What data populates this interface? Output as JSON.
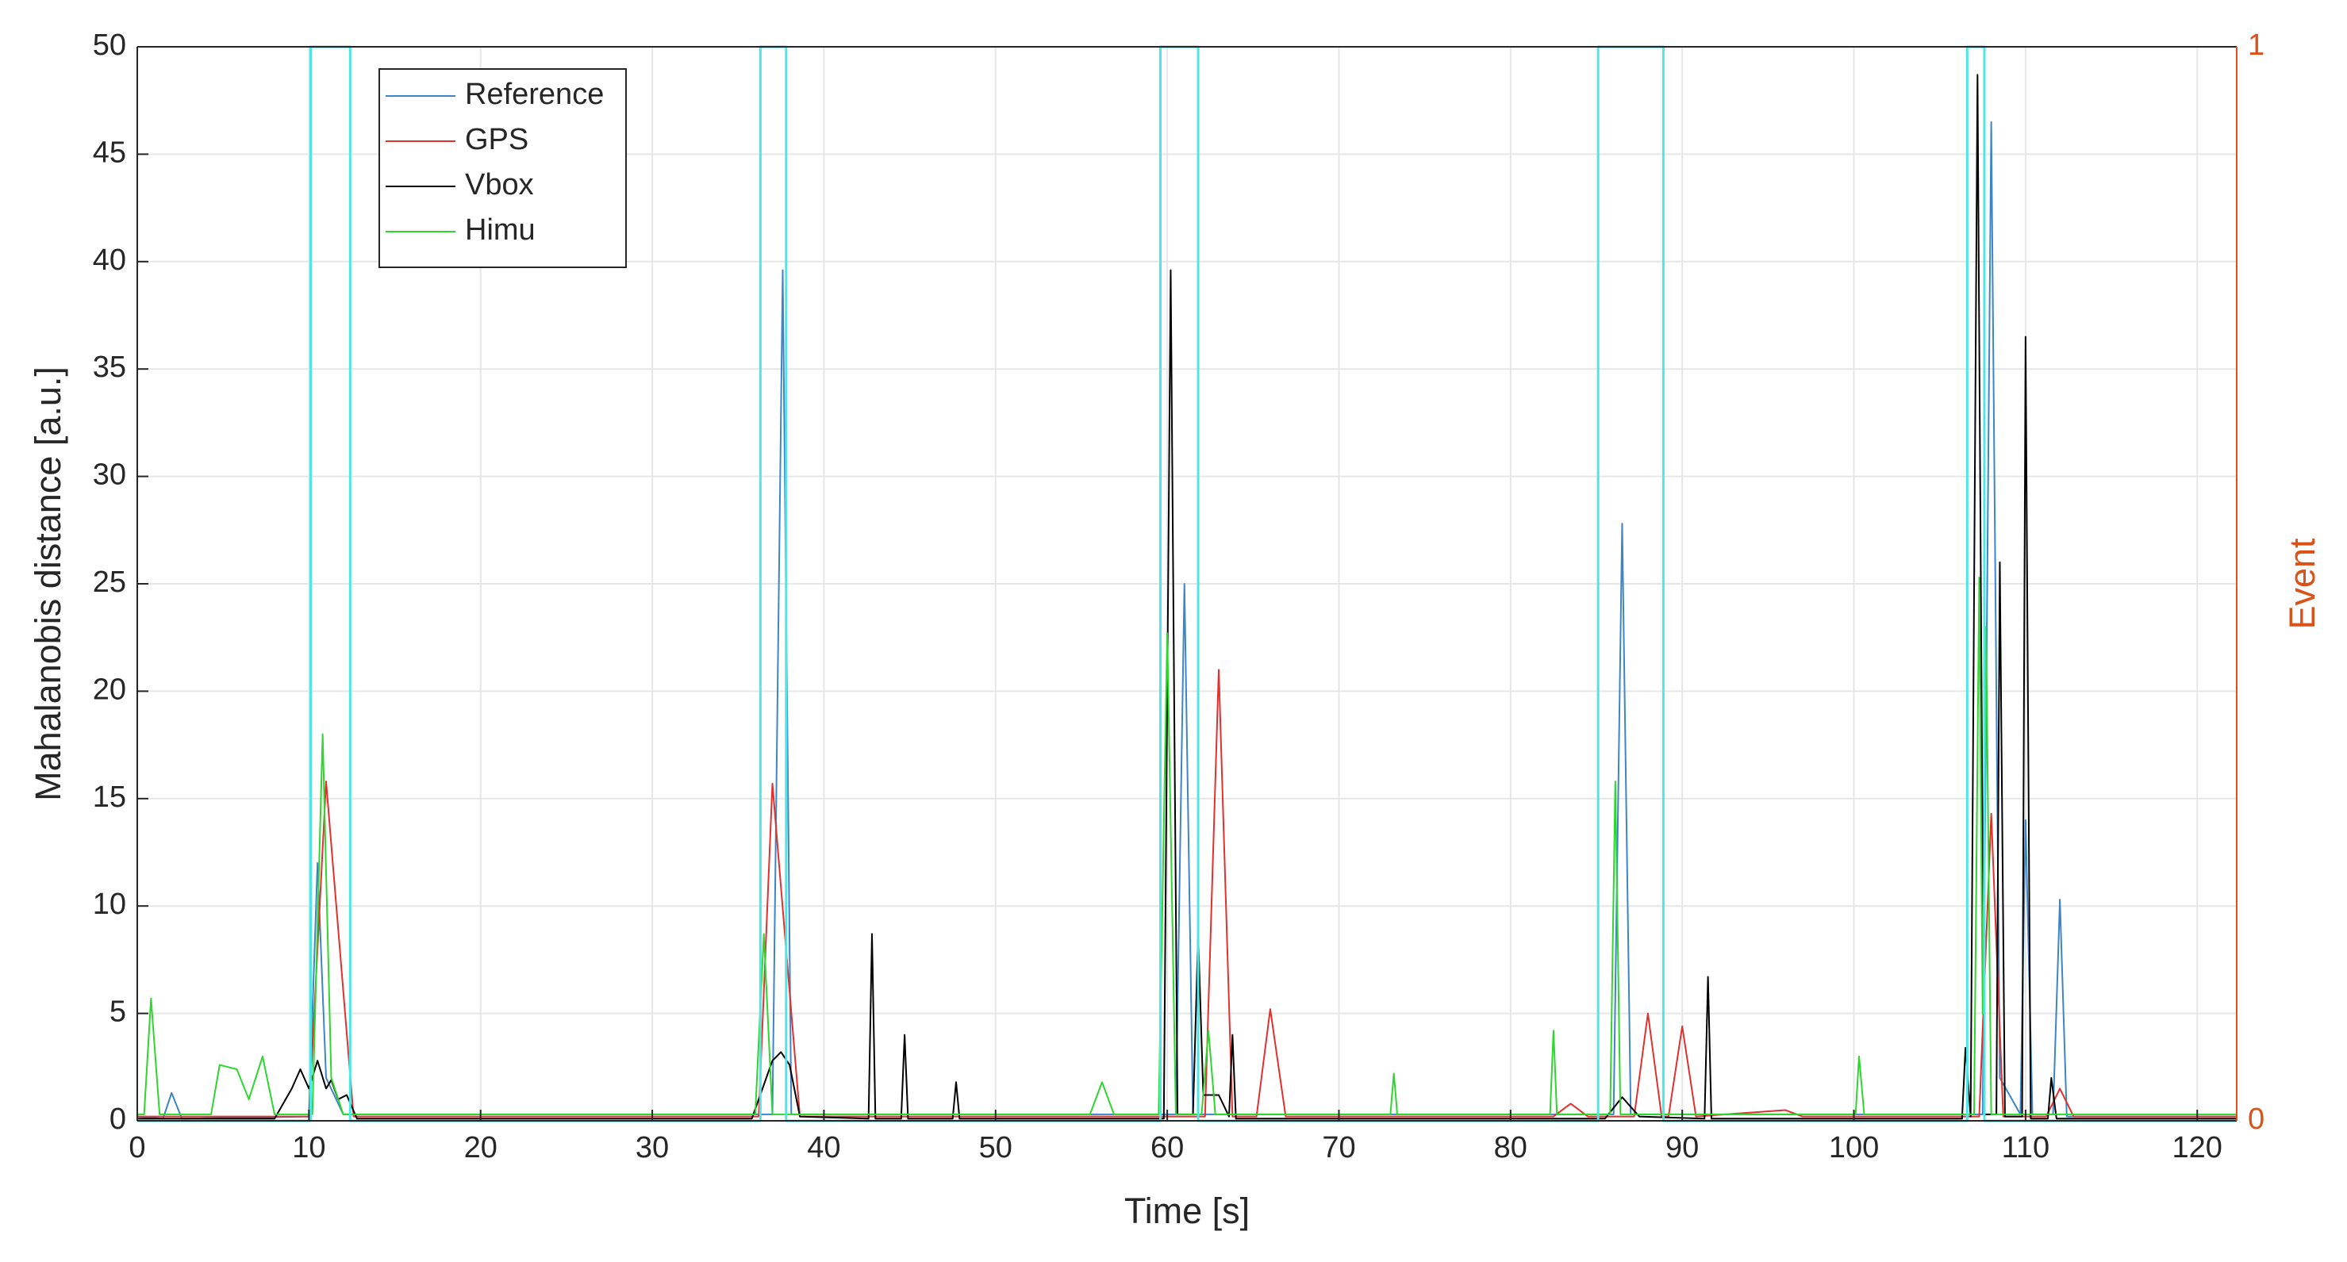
{
  "chart_data": {
    "type": "line",
    "x_label": "Time [s]",
    "y_label": "Mahalanobis distance [a.u.]",
    "y2_label": "Event",
    "y2_color": "#d95319",
    "xlim": [
      0,
      122.3
    ],
    "xticks": [
      0,
      10,
      20,
      30,
      40,
      50,
      60,
      70,
      80,
      90,
      100,
      110,
      120
    ],
    "ylim": [
      0,
      50
    ],
    "yticks": [
      0,
      5,
      10,
      15,
      20,
      25,
      30,
      35,
      40,
      45,
      50
    ],
    "y2lim": [
      0,
      1
    ],
    "y2ticks": [
      0,
      1
    ],
    "grid": true,
    "legend": "upper left",
    "series": [
      {
        "name": "Reference",
        "color": "#3d85c6",
        "x": [
          0,
          1.5,
          2,
          2.6,
          10,
          10.5,
          11,
          12,
          37,
          37.6,
          38.1,
          60.5,
          61,
          61.5,
          86,
          86.5,
          87,
          107.5,
          108,
          108.5,
          109.7,
          110,
          110.4,
          111.6,
          112,
          112.4,
          122.3
        ],
        "values": [
          0.2,
          0.1,
          1.3,
          0.1,
          0.2,
          12,
          2,
          0.3,
          0.3,
          39.6,
          0.3,
          0.3,
          25,
          0.3,
          0.3,
          27.8,
          0.3,
          0.3,
          46.5,
          2,
          0.3,
          14,
          0.3,
          0.3,
          10.3,
          0.2,
          0.2
        ]
      },
      {
        "name": "GPS",
        "color": "#e0312f",
        "x": [
          0,
          10,
          11,
          12.6,
          36.2,
          37,
          38.6,
          62.2,
          63,
          63.8,
          65.2,
          66,
          66.9,
          82.5,
          83.5,
          84.5,
          87.2,
          88,
          88.8,
          89.2,
          90,
          90.8,
          96,
          97,
          107.3,
          108,
          108.7,
          111.2,
          112,
          112.8,
          122.3
        ],
        "values": [
          0.2,
          0.2,
          15.8,
          0.2,
          0.2,
          15.7,
          0.2,
          0.2,
          21,
          0.2,
          0.2,
          5.2,
          0.2,
          0.2,
          0.8,
          0.2,
          0.2,
          5,
          0.2,
          0.2,
          4.4,
          0.2,
          0.5,
          0.2,
          0.2,
          14.3,
          0.2,
          0.2,
          1.5,
          0.2,
          0.2
        ]
      },
      {
        "name": "Vbox",
        "color": "#000000",
        "x": [
          0,
          8,
          9,
          9.5,
          10,
          10.5,
          11,
          11.3,
          11.7,
          12.2,
          12.8,
          35.8,
          37,
          37.5,
          38,
          38.6,
          42.6,
          42.8,
          43,
          44.5,
          44.7,
          44.9,
          47.5,
          47.7,
          47.9,
          59.8,
          60.2,
          60.6,
          61.5,
          61.8,
          62.1,
          63,
          63.6,
          63.8,
          64,
          85.5,
          86.5,
          87.5,
          91.3,
          91.5,
          91.7,
          106.3,
          106.5,
          106.8,
          107.2,
          107.6,
          108.3,
          108.5,
          108.8,
          109.8,
          110,
          110.3,
          111.3,
          111.5,
          111.8,
          122.3
        ],
        "values": [
          0.1,
          0.1,
          1.5,
          2.4,
          1.5,
          2.8,
          1.5,
          1.9,
          1,
          1.2,
          0.1,
          0.1,
          2.8,
          3.2,
          2.6,
          0.2,
          0.1,
          8.7,
          0.1,
          0.1,
          4,
          0.1,
          0.1,
          1.8,
          0.1,
          0.1,
          39.6,
          0.3,
          0.3,
          8.7,
          1.2,
          1.2,
          0.2,
          4,
          0.1,
          0.1,
          1.1,
          0.2,
          0.1,
          6.7,
          0.1,
          0.1,
          3.4,
          0.2,
          48.7,
          0.3,
          0.3,
          26,
          0.2,
          0.2,
          36.5,
          0.1,
          0.1,
          2,
          0.1,
          0.1
        ]
      },
      {
        "name": "Himu",
        "color": "#2fd62f",
        "x": [
          0,
          0.4,
          0.8,
          1.3,
          4.3,
          4.8,
          5.8,
          6.5,
          7.3,
          8,
          10.2,
          10.8,
          11.3,
          12,
          36,
          36.5,
          37,
          55.5,
          56.2,
          56.9,
          59.5,
          60,
          60.5,
          62,
          62.4,
          62.8,
          73,
          73.2,
          73.4,
          82.3,
          82.5,
          82.7,
          85.8,
          86.1,
          86.4,
          100.1,
          100.3,
          100.6,
          107,
          107.3,
          107.5,
          107.7,
          108,
          122.3
        ],
        "values": [
          0.3,
          0.3,
          5.7,
          0.3,
          0.3,
          2.6,
          2.4,
          1,
          3,
          0.3,
          0.3,
          18,
          2,
          0.3,
          0.3,
          8.7,
          0.3,
          0.3,
          1.8,
          0.3,
          0.3,
          22.7,
          0.3,
          0.3,
          4.2,
          0.3,
          0.3,
          2.2,
          0.3,
          0.3,
          4.2,
          0.3,
          0.3,
          15.8,
          0.3,
          0.3,
          3,
          0.3,
          0.3,
          25.3,
          5,
          23,
          0.3,
          0.3
        ]
      },
      {
        "color": "#4ee6e6",
        "axis": "y2",
        "x": [
          0,
          10.1,
          10.1,
          12.4,
          12.4,
          36.3,
          36.3,
          37.8,
          37.8,
          59.6,
          59.6,
          61.8,
          61.8,
          85.1,
          85.1,
          88.9,
          88.9,
          106.6,
          106.6,
          107.6,
          107.6,
          122.3
        ],
        "values": [
          0,
          0,
          1,
          1,
          0,
          0,
          1,
          1,
          0,
          0,
          1,
          1,
          0,
          0,
          1,
          1,
          0,
          0,
          1,
          1,
          0,
          0
        ]
      }
    ]
  }
}
